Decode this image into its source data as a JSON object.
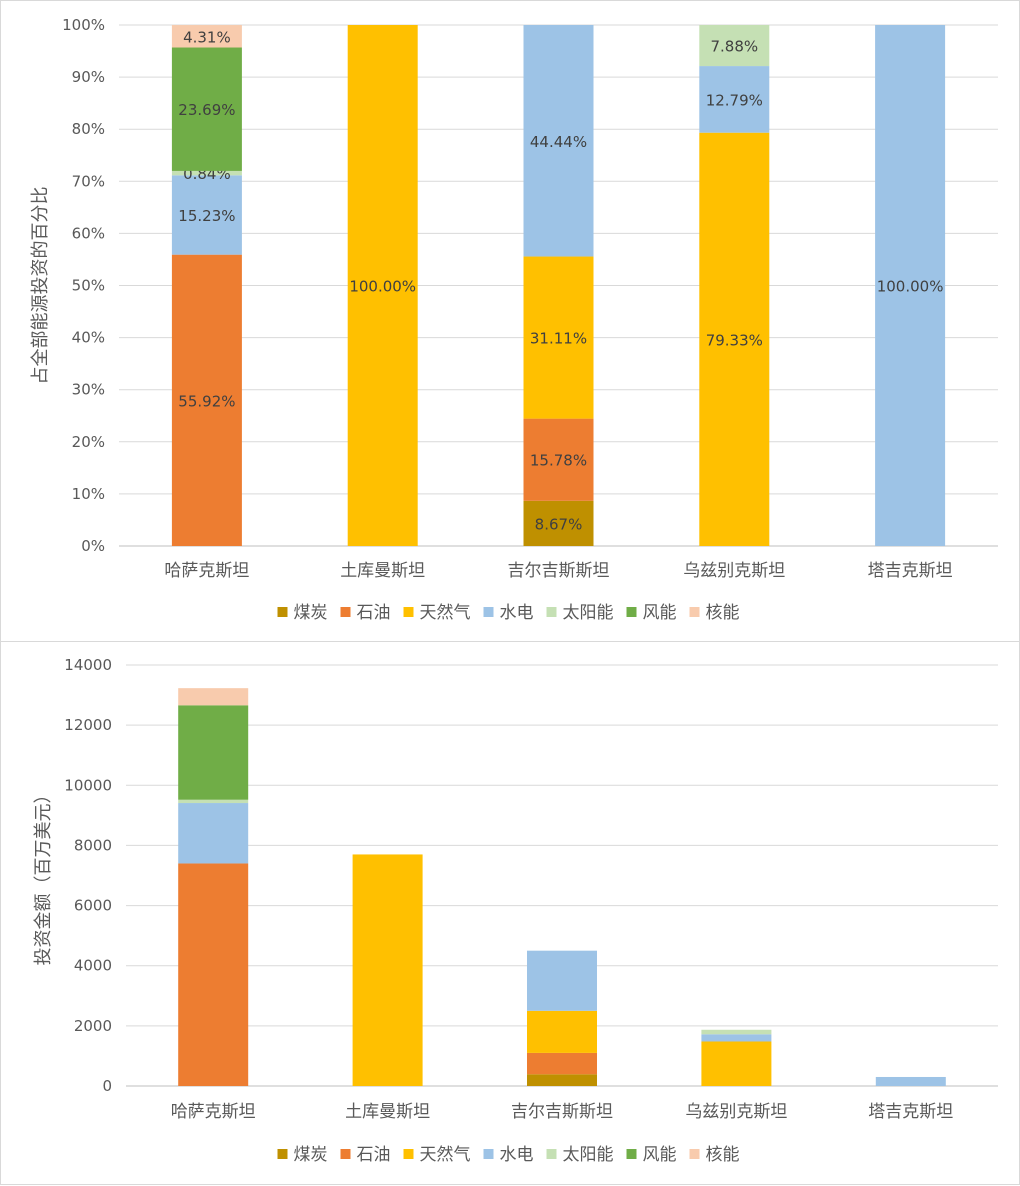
{
  "colors": {
    "煤炭": "#bf9000",
    "石油": "#ed7d31",
    "天然气": "#ffc000",
    "水电": "#9dc3e6",
    "太阳能": "#c5e0b4",
    "风能": "#70ad47",
    "核能": "#f8cbad"
  },
  "chart_data": [
    {
      "type": "bar",
      "stacked": "percent",
      "ylabel": "占全部能源投资的百分比",
      "ylim": [
        0,
        100
      ],
      "yticks": [
        "0%",
        "10%",
        "20%",
        "30%",
        "40%",
        "50%",
        "60%",
        "70%",
        "80%",
        "90%",
        "100%"
      ],
      "categories": [
        "哈萨克斯坦",
        "土库曼斯坦",
        "吉尔吉斯斯坦",
        "乌兹别克斯坦",
        "塔吉克斯坦"
      ],
      "legend": [
        "煤炭",
        "石油",
        "天然气",
        "水电",
        "太阳能",
        "风能",
        "核能"
      ],
      "series": [
        {
          "name": "煤炭",
          "values": [
            0,
            0,
            8.67,
            0,
            0
          ],
          "labels": [
            "",
            "",
            "8.67%",
            "",
            ""
          ]
        },
        {
          "name": "石油",
          "values": [
            55.92,
            0,
            15.78,
            0,
            0
          ],
          "labels": [
            "55.92%",
            "",
            "15.78%",
            "",
            ""
          ]
        },
        {
          "name": "天然气",
          "values": [
            0,
            100,
            31.11,
            79.33,
            0
          ],
          "labels": [
            "",
            "100.00%",
            "31.11%",
            "79.33%",
            ""
          ]
        },
        {
          "name": "水电",
          "values": [
            15.23,
            0,
            44.44,
            12.79,
            100
          ],
          "labels": [
            "15.23%",
            "",
            "44.44%",
            "12.79%",
            "100.00%"
          ]
        },
        {
          "name": "太阳能",
          "values": [
            0.84,
            0,
            0,
            7.88,
            0
          ],
          "labels": [
            "0.84%",
            "",
            "",
            "7.88%",
            ""
          ]
        },
        {
          "name": "风能",
          "values": [
            23.69,
            0,
            0,
            0,
            0
          ],
          "labels": [
            "23.69%",
            "",
            "",
            "",
            ""
          ]
        },
        {
          "name": "核能",
          "values": [
            4.31,
            0,
            0,
            0,
            0
          ],
          "labels": [
            "4.31%",
            "",
            "",
            "",
            ""
          ]
        }
      ]
    },
    {
      "type": "bar",
      "stacked": "absolute",
      "ylabel": "投资金额（百万美元）",
      "ylim": [
        0,
        14000
      ],
      "yticks": [
        "0",
        "2000",
        "4000",
        "6000",
        "8000",
        "10000",
        "12000",
        "14000"
      ],
      "categories": [
        "哈萨克斯坦",
        "土库曼斯坦",
        "吉尔吉斯斯坦",
        "乌兹别克斯坦",
        "塔吉克斯坦"
      ],
      "legend": [
        "煤炭",
        "石油",
        "天然气",
        "水电",
        "太阳能",
        "风能",
        "核能"
      ],
      "series": [
        {
          "name": "煤炭",
          "values": [
            0,
            0,
            390,
            0,
            0
          ]
        },
        {
          "name": "石油",
          "values": [
            7400,
            0,
            710,
            0,
            0
          ]
        },
        {
          "name": "天然气",
          "values": [
            0,
            7700,
            1400,
            1480,
            0
          ]
        },
        {
          "name": "水电",
          "values": [
            2010,
            0,
            2000,
            240,
            300
          ]
        },
        {
          "name": "太阳能",
          "values": [
            110,
            0,
            0,
            150,
            0
          ]
        },
        {
          "name": "风能",
          "values": [
            3140,
            0,
            0,
            0,
            0
          ]
        },
        {
          "name": "核能",
          "values": [
            570,
            0,
            0,
            0,
            0
          ]
        }
      ]
    }
  ]
}
